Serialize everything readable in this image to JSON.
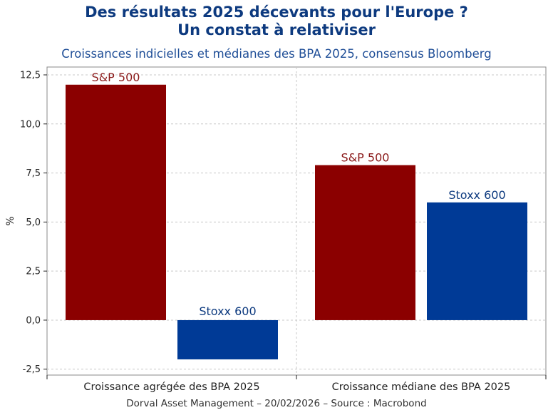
{
  "chart_data": {
    "type": "bar",
    "title_line1": "Des résultats 2025 décevants pour l'Europe ?",
    "title_line2": "Un constat à relativiser",
    "subtitle": "Croissances indicielles et médianes des BPA 2025, consensus Bloomberg",
    "ylabel": "%",
    "ylim": [
      -2.8,
      12.9
    ],
    "yticks": [
      -2.5,
      0,
      2.5,
      5,
      7.5,
      10,
      12.5
    ],
    "ytick_labels": [
      "-2,5",
      "0,0",
      "2,5",
      "5,0",
      "7,5",
      "10,0",
      "12,5"
    ],
    "categories": [
      "Croissance agrégée des BPA 2025",
      "Croissance médiane des BPA 2025"
    ],
    "series": [
      {
        "name": "S&P 500",
        "color": "#8b0000",
        "label_color": "#8b1a1a",
        "values": [
          12.0,
          7.9
        ]
      },
      {
        "name": "Stoxx 600",
        "color": "#003a96",
        "label_color": "#0d3a7f",
        "values": [
          -2.0,
          6.0
        ]
      }
    ],
    "grid": true,
    "footer": "Dorval Asset Management – 20/02/2026 –  Source : Macrobond"
  }
}
